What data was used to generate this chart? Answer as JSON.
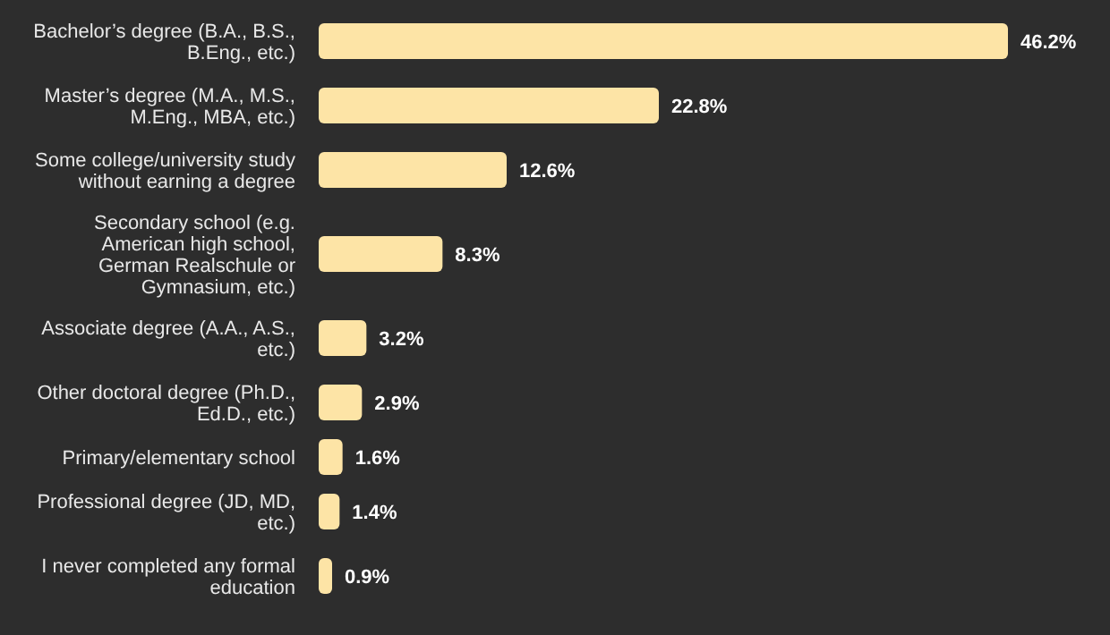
{
  "chart_data": {
    "type": "bar",
    "orientation": "horizontal",
    "categories": [
      "Bachelor’s degree (B.A., B.S., B.Eng., etc.)",
      "Master’s degree (M.A., M.S., M.Eng., MBA, etc.)",
      "Some college/university study without earning a degree",
      "Secondary school (e.g. American high school, German Realschule or Gymnasium, etc.)",
      "Associate degree (A.A., A.S., etc.)",
      "Other doctoral degree (Ph.D., Ed.D., etc.)",
      "Primary/elementary school",
      "Professional degree (JD, MD, etc.)",
      "I never completed any formal education"
    ],
    "values": [
      46.2,
      22.8,
      12.6,
      8.3,
      3.2,
      2.9,
      1.6,
      1.4,
      0.9
    ],
    "value_labels": [
      "46.2%",
      "22.8%",
      "12.6%",
      "8.3%",
      "3.2%",
      "2.9%",
      "1.6%",
      "1.4%",
      "0.9%"
    ],
    "color": "#fde4a6",
    "xlim": [
      0,
      46.2
    ]
  }
}
